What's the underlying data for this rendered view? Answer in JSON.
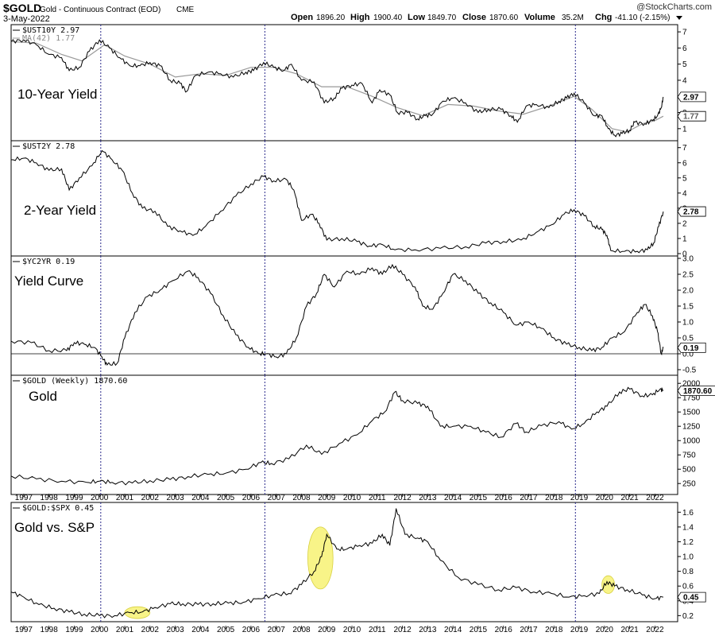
{
  "header": {
    "symbol": "$GOLD",
    "description": "Gold - Continuous Contract (EOD)",
    "exchange": "CME",
    "date": "3-May-2022",
    "brand": "@StockCharts.com",
    "quote": {
      "open_label": "Open",
      "open": "1896.20",
      "high_label": "High",
      "high": "1900.40",
      "low_label": "Low",
      "low": "1849.70",
      "close_label": "Close",
      "close": "1870.60",
      "volume_label": "Volume",
      "volume": "35.2M",
      "chg_label": "Chg",
      "chg": "-41.10 (-2.15%)"
    }
  },
  "colors": {
    "line": "#000000",
    "ma": "#999999",
    "vline": "#2a2a8c",
    "highlight": "#f5f060"
  },
  "chart_data": [
    {
      "type": "line",
      "panel_label": "$UST10Y 2.97",
      "ma_label": "MA(42) 1.77",
      "big_label": "10-Year Yield",
      "ylim": [
        0.4,
        7.3
      ],
      "yticks": [
        1,
        2,
        3,
        4,
        5,
        6,
        7
      ],
      "last_values": [
        "2.97",
        "1.77"
      ],
      "series": [
        {
          "x": [
            1996.5,
            1997,
            1997.5,
            1998,
            1998.5,
            1998.8,
            1999.2,
            1999.6,
            2000.0,
            2000.4,
            2000.8,
            2001.2,
            2001.6,
            2002.0,
            2002.4,
            2002.8,
            2003.2,
            2003.45,
            2003.8,
            2004.3,
            2004.8,
            2005.3,
            2005.8,
            2006.1,
            2006.5,
            2006.9,
            2007.3,
            2007.6,
            2008.0,
            2008.5,
            2008.9,
            2009.3,
            2009.6,
            2010.0,
            2010.4,
            2010.8,
            2011.1,
            2011.5,
            2011.8,
            2012.2,
            2012.6,
            2012.9,
            2013.2,
            2013.6,
            2014.0,
            2014.5,
            2015.0,
            2015.4,
            2015.9,
            2016.3,
            2016.55,
            2016.9,
            2017.3,
            2017.8,
            2018.2,
            2018.5,
            2018.8,
            2019.2,
            2019.6,
            2019.9,
            2020.15,
            2020.4,
            2020.7,
            2021.0,
            2021.2,
            2021.6,
            2021.9,
            2022.1,
            2022.25,
            2022.33
          ],
          "y": [
            6.4,
            6.5,
            6.2,
            5.6,
            5.4,
            4.6,
            4.8,
            5.8,
            6.5,
            6.0,
            5.4,
            4.9,
            4.9,
            5.1,
            4.9,
            4.0,
            3.8,
            3.3,
            4.3,
            4.5,
            4.4,
            4.2,
            4.5,
            4.6,
            5.1,
            4.8,
            4.6,
            5.0,
            4.0,
            3.9,
            2.6,
            2.9,
            3.5,
            3.7,
            3.8,
            2.6,
            3.4,
            3.1,
            2.0,
            2.0,
            1.6,
            1.8,
            1.9,
            2.7,
            2.9,
            2.6,
            2.0,
            2.2,
            2.2,
            1.8,
            1.4,
            2.4,
            2.5,
            2.3,
            2.7,
            2.9,
            3.2,
            2.6,
            1.8,
            1.8,
            1.0,
            0.6,
            0.7,
            0.9,
            1.4,
            1.3,
            1.5,
            1.8,
            2.3,
            2.97
          ]
        },
        {
          "x": [
            1996.5,
            1997.5,
            1998.5,
            1999.3,
            2000.2,
            2001.0,
            2002.0,
            2003.0,
            2004.0,
            2005.0,
            2006.0,
            2006.9,
            2007.8,
            2008.8,
            2009.8,
            2010.8,
            2011.8,
            2012.8,
            2013.8,
            2014.8,
            2015.8,
            2016.8,
            2017.8,
            2018.8,
            2019.5,
            2020.3,
            2020.9,
            2021.5,
            2022.0,
            2022.33
          ],
          "y": [
            6.4,
            6.3,
            5.6,
            5.2,
            6.2,
            5.5,
            5.0,
            4.2,
            4.4,
            4.3,
            4.8,
            4.8,
            4.4,
            3.6,
            3.6,
            3.0,
            2.3,
            1.8,
            2.5,
            2.4,
            2.1,
            1.9,
            2.4,
            3.0,
            2.2,
            1.0,
            0.8,
            1.3,
            1.5,
            1.77
          ]
        }
      ]
    },
    {
      "type": "line",
      "panel_label": "$UST2Y 2.78",
      "big_label": "2-Year Yield",
      "ylim": [
        0,
        7.3
      ],
      "yticks": [
        0,
        1,
        2,
        3,
        4,
        5,
        6,
        7
      ],
      "last_values": [
        "2.78"
      ],
      "series": [
        {
          "x": [
            1996.5,
            1997.0,
            1997.5,
            1998.0,
            1998.5,
            1998.8,
            1999.2,
            1999.7,
            2000.1,
            2000.5,
            2000.9,
            2001.3,
            2001.7,
            2002.2,
            2002.7,
            2003.2,
            2003.7,
            2004.2,
            2004.8,
            2005.4,
            2006.0,
            2006.5,
            2006.9,
            2007.4,
            2007.7,
            2008.0,
            2008.4,
            2008.7,
            2009.0,
            2009.6,
            2010.2,
            2010.7,
            2011.2,
            2011.7,
            2012.5,
            2013.5,
            2014.5,
            2015.3,
            2016.0,
            2016.7,
            2017.3,
            2017.9,
            2018.4,
            2018.8,
            2019.2,
            2019.6,
            2019.9,
            2020.1,
            2020.25,
            2020.8,
            2021.3,
            2021.7,
            2021.95,
            2022.15,
            2022.33
          ],
          "y": [
            6.2,
            6.3,
            6.0,
            5.5,
            5.6,
            4.2,
            5.0,
            5.8,
            6.8,
            6.2,
            5.5,
            4.0,
            3.0,
            2.8,
            1.8,
            1.5,
            1.2,
            1.8,
            2.8,
            3.8,
            4.6,
            5.1,
            4.8,
            4.9,
            4.2,
            2.2,
            2.6,
            2.0,
            0.9,
            1.0,
            0.8,
            0.5,
            0.6,
            0.25,
            0.25,
            0.35,
            0.45,
            0.7,
            0.8,
            0.9,
            1.4,
            1.9,
            2.6,
            2.9,
            2.5,
            1.8,
            1.6,
            1.2,
            0.2,
            0.15,
            0.15,
            0.25,
            0.7,
            1.8,
            2.78
          ]
        }
      ]
    },
    {
      "type": "line",
      "panel_label": "$YC2YR 0.19",
      "big_label": "Yield Curve",
      "ylim": [
        -0.6,
        3.0
      ],
      "yticks": [
        -0.5,
        0.0,
        0.5,
        1.0,
        1.5,
        2.0,
        2.5,
        3.0
      ],
      "ytick_labels": [
        "-0.5",
        "0.0",
        "0.5",
        "1.0",
        "1.5",
        "2.0",
        "2.5",
        "3.0"
      ],
      "zero_line": 0,
      "last_values": [
        "0.19"
      ],
      "series": [
        {
          "x": [
            1996.5,
            1997.3,
            1998.0,
            1998.7,
            1999.0,
            1999.4,
            1999.8,
            2000.1,
            2000.3,
            2000.7,
            2001.0,
            2001.4,
            2001.9,
            2002.4,
            2002.9,
            2003.5,
            2003.9,
            2004.4,
            2004.9,
            2005.4,
            2005.9,
            2006.3,
            2006.6,
            2007.0,
            2007.4,
            2007.8,
            2008.2,
            2008.6,
            2008.9,
            2009.3,
            2009.8,
            2010.3,
            2010.8,
            2011.2,
            2011.6,
            2012.0,
            2012.5,
            2012.8,
            2013.2,
            2013.6,
            2014.0,
            2014.5,
            2015.0,
            2015.5,
            2016.0,
            2016.5,
            2017.0,
            2017.5,
            2018.0,
            2018.5,
            2019.0,
            2019.5,
            2019.9,
            2020.3,
            2020.8,
            2021.3,
            2021.6,
            2021.9,
            2022.1,
            2022.25,
            2022.33
          ],
          "y": [
            0.4,
            0.35,
            0.1,
            0.1,
            0.35,
            0.3,
            0.2,
            -0.1,
            -0.35,
            -0.3,
            0.5,
            1.3,
            1.8,
            2.0,
            2.3,
            2.6,
            2.4,
            1.9,
            1.2,
            0.6,
            0.2,
            0.0,
            0.0,
            -0.1,
            0.0,
            0.5,
            1.5,
            1.9,
            2.5,
            2.1,
            2.6,
            2.5,
            2.7,
            2.5,
            2.8,
            2.5,
            2.1,
            1.5,
            1.4,
            1.9,
            2.5,
            2.3,
            1.9,
            1.6,
            1.3,
            0.9,
            1.0,
            0.8,
            0.5,
            0.3,
            0.2,
            0.1,
            0.2,
            0.5,
            0.7,
            1.3,
            1.55,
            1.2,
            0.7,
            0.0,
            0.19
          ]
        }
      ]
    },
    {
      "type": "line",
      "panel_label": "$GOLD (Weekly) 1870.60",
      "big_label": "Gold",
      "ylim": [
        100,
        2100
      ],
      "yticks": [
        250,
        500,
        750,
        1000,
        1250,
        1500,
        1750,
        2000
      ],
      "last_values": [
        "1870.60"
      ],
      "series": [
        {
          "x": [
            1996.5,
            1997.5,
            1998.5,
            1999.5,
            2000.0,
            2000.5,
            2001.3,
            2002.0,
            2002.8,
            2003.5,
            2004.3,
            2005.0,
            2005.8,
            2006.4,
            2006.8,
            2007.5,
            2008.2,
            2008.8,
            2009.5,
            2010.2,
            2010.8,
            2011.3,
            2011.7,
            2012.0,
            2012.6,
            2013.0,
            2013.5,
            2014.0,
            2014.7,
            2015.3,
            2015.9,
            2016.5,
            2016.9,
            2017.5,
            2018.2,
            2018.7,
            2019.2,
            2019.7,
            2020.1,
            2020.6,
            2021.0,
            2021.5,
            2021.9,
            2022.2,
            2022.33
          ],
          "y": [
            380,
            330,
            290,
            270,
            290,
            270,
            260,
            300,
            320,
            370,
            410,
            430,
            500,
            620,
            600,
            680,
            920,
            760,
            950,
            1100,
            1350,
            1500,
            1850,
            1700,
            1650,
            1600,
            1250,
            1250,
            1250,
            1150,
            1060,
            1300,
            1150,
            1260,
            1330,
            1200,
            1300,
            1500,
            1600,
            1850,
            1900,
            1780,
            1800,
            1900,
            1870.6
          ]
        }
      ]
    },
    {
      "type": "line",
      "panel_label": "$GOLD:$SPX 0.45",
      "big_label": "Gold vs. S&P",
      "ylim": [
        0.15,
        1.7
      ],
      "yticks": [
        0.2,
        0.4,
        0.6,
        0.8,
        1.0,
        1.2,
        1.4,
        1.6
      ],
      "ytick_labels": [
        "0.2",
        "0.4",
        "0.6",
        "0.8",
        "1.0",
        "1.2",
        "1.4",
        "1.6"
      ],
      "last_values": [
        "0.45"
      ],
      "highlights": [
        {
          "cx": 2001.5,
          "cy": 0.24,
          "rx_years": 0.5,
          "ry_units": 0.08
        },
        {
          "cx": 2008.75,
          "cy": 0.98,
          "rx_years": 0.5,
          "ry_units": 0.42
        },
        {
          "cx": 2020.15,
          "cy": 0.62,
          "rx_years": 0.25,
          "ry_units": 0.12
        }
      ],
      "series": [
        {
          "x": [
            1996.5,
            1997.0,
            1997.6,
            1998.2,
            1998.8,
            1999.4,
            2000.0,
            2000.6,
            2001.2,
            2001.7,
            2002.2,
            2002.8,
            2003.3,
            2003.9,
            2004.5,
            2005.1,
            2005.7,
            2006.3,
            2006.9,
            2007.5,
            2008.0,
            2008.5,
            2008.8,
            2009.0,
            2009.4,
            2009.8,
            2010.3,
            2010.8,
            2011.2,
            2011.5,
            2011.75,
            2012.1,
            2012.6,
            2013.0,
            2013.5,
            2014.2,
            2015.0,
            2015.8,
            2016.5,
            2017.2,
            2017.9,
            2018.6,
            2019.2,
            2019.8,
            2020.1,
            2020.4,
            2020.9,
            2021.5,
            2022.0,
            2022.33
          ],
          "y": [
            0.52,
            0.45,
            0.35,
            0.3,
            0.25,
            0.22,
            0.2,
            0.2,
            0.24,
            0.25,
            0.31,
            0.36,
            0.36,
            0.35,
            0.36,
            0.37,
            0.38,
            0.43,
            0.48,
            0.5,
            0.62,
            0.8,
            1.0,
            1.3,
            1.1,
            1.1,
            1.15,
            1.18,
            1.3,
            1.15,
            1.65,
            1.3,
            1.25,
            1.2,
            0.95,
            0.72,
            0.62,
            0.55,
            0.58,
            0.52,
            0.5,
            0.45,
            0.47,
            0.5,
            0.66,
            0.6,
            0.55,
            0.48,
            0.43,
            0.45
          ]
        }
      ]
    }
  ],
  "x_axis": {
    "range": [
      1996.5,
      2022.9
    ],
    "labels": [
      "1997",
      "1998",
      "1999",
      "2000",
      "2001",
      "2002",
      "2003",
      "2004",
      "2005",
      "2006",
      "2007",
      "2008",
      "2009",
      "2010",
      "2011",
      "2012",
      "2013",
      "2014",
      "2015",
      "2016",
      "2017",
      "2018",
      "2019",
      "2020",
      "2021",
      "2022"
    ],
    "label_years": [
      1997,
      1998,
      1999,
      2000,
      2001,
      2002,
      2003,
      2004,
      2005,
      2006,
      2007,
      2008,
      2009,
      2010,
      2011,
      2012,
      2013,
      2014,
      2015,
      2016,
      2017,
      2018,
      2019,
      2020,
      2021,
      2022
    ]
  },
  "vertical_markers": [
    2000.05,
    2006.55,
    2018.85
  ]
}
